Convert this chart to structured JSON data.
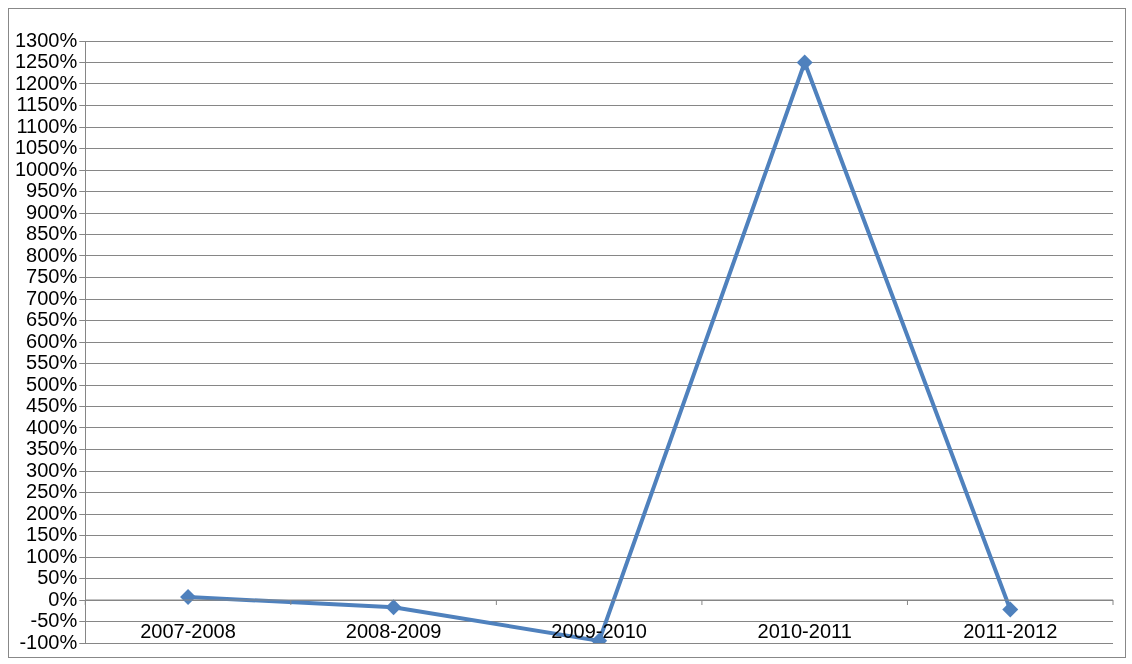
{
  "chart_data": {
    "type": "line",
    "categories": [
      "2007-2008",
      "2008-2009",
      "2009-2010",
      "2010-2011",
      "2011-2012"
    ],
    "series": [
      {
        "color": "#4f81bd",
        "values": [
          7,
          -17,
          -95,
          1250,
          -22
        ]
      }
    ],
    "marker": "diamond",
    "grid": "y",
    "legend": false,
    "ylim": [
      -100,
      1300
    ],
    "yticks": [
      {
        "value": -100,
        "label": "-100%"
      },
      {
        "value": -50,
        "label": "-50%"
      },
      {
        "value": 0,
        "label": "0%"
      },
      {
        "value": 50,
        "label": "50%"
      },
      {
        "value": 100,
        "label": "100%"
      },
      {
        "value": 150,
        "label": "150%"
      },
      {
        "value": 200,
        "label": "200%"
      },
      {
        "value": 250,
        "label": "250%"
      },
      {
        "value": 300,
        "label": "300%"
      },
      {
        "value": 350,
        "label": "350%"
      },
      {
        "value": 400,
        "label": "400%"
      },
      {
        "value": 450,
        "label": "450%"
      },
      {
        "value": 500,
        "label": "500%"
      },
      {
        "value": 550,
        "label": "550%"
      },
      {
        "value": 600,
        "label": "600%"
      },
      {
        "value": 650,
        "label": "650%"
      },
      {
        "value": 700,
        "label": "700%"
      },
      {
        "value": 750,
        "label": "750%"
      },
      {
        "value": 800,
        "label": "800%"
      },
      {
        "value": 850,
        "label": "850%"
      },
      {
        "value": 900,
        "label": "900%"
      },
      {
        "value": 950,
        "label": "950%"
      },
      {
        "value": 1000,
        "label": "1000%"
      },
      {
        "value": 1050,
        "label": "1050%"
      },
      {
        "value": 1100,
        "label": "1100%"
      },
      {
        "value": 1150,
        "label": "1150%"
      },
      {
        "value": 1200,
        "label": "1200%"
      },
      {
        "value": 1250,
        "label": "1250%"
      },
      {
        "value": 1300,
        "label": "1300%"
      }
    ]
  }
}
